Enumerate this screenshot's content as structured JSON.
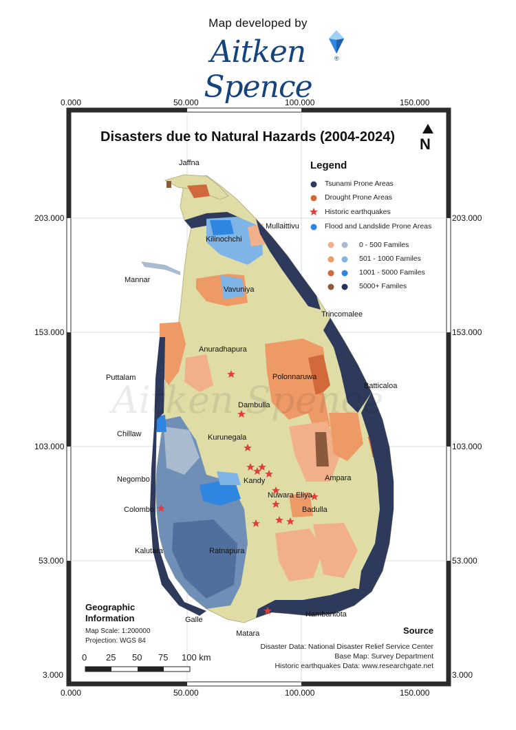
{
  "header": {
    "caption": "Map developed by",
    "logo_text": "Aitken Spence",
    "logo_reg": "®"
  },
  "map": {
    "title": "Disasters due to Natural Hazards (2004-2024)",
    "north_letter": "N",
    "x_ticks": [
      "0.000",
      "50.000",
      "100.000",
      "150.000"
    ],
    "y_ticks": [
      "203.000",
      "153.000",
      "103.000",
      "53.000",
      "3.000"
    ],
    "watermark": "Aitken Spence"
  },
  "legend": {
    "title": "Legend",
    "hazards": [
      {
        "label": "Tsunami Prone Areas",
        "color": "#2d3a5c",
        "symbol": "dot"
      },
      {
        "label": "Drought Prone Areas",
        "color": "#d2693a",
        "symbol": "dot"
      },
      {
        "label": "Historic earthquakes",
        "color": "#e23c3c",
        "symbol": "star"
      },
      {
        "label": "Flood and Landslide Prone Areas",
        "color": "#2f86e0",
        "symbol": "dot"
      }
    ],
    "classes": [
      {
        "label": "0 - 500  Familes",
        "drought_color": "#f2b08a",
        "flood_color": "#a9bccf"
      },
      {
        "label": "501 - 1000  Familes",
        "drought_color": "#ee9a66",
        "flood_color": "#7fb4e6"
      },
      {
        "label": "1001 - 5000  Familes",
        "drought_color": "#d2693a",
        "flood_color": "#2f86e0"
      },
      {
        "label": "5000+  Familes",
        "drought_color": "#8b5a3a",
        "flood_color": "#24345a"
      }
    ]
  },
  "places": [
    {
      "name": "Jaffna"
    },
    {
      "name": "Mullaittivu"
    },
    {
      "name": "Kilinochchi"
    },
    {
      "name": "Mannar"
    },
    {
      "name": "Vavuniya"
    },
    {
      "name": "Trincomalee"
    },
    {
      "name": "Anuradhapura"
    },
    {
      "name": "Puttalam"
    },
    {
      "name": "Polonnaruwa"
    },
    {
      "name": "Batticaloa"
    },
    {
      "name": "Dambulla"
    },
    {
      "name": "Chillaw"
    },
    {
      "name": "Kurunegala"
    },
    {
      "name": "Negombo"
    },
    {
      "name": "Kandy"
    },
    {
      "name": "Ampara"
    },
    {
      "name": "Nuwara Eliya"
    },
    {
      "name": "Colombo"
    },
    {
      "name": "Badulla"
    },
    {
      "name": "Kalutara"
    },
    {
      "name": "Ratnapura"
    },
    {
      "name": "Hambantota"
    },
    {
      "name": "Galle"
    },
    {
      "name": "Matara"
    }
  ],
  "geographic_info": {
    "title_line1": "Geographic",
    "title_line2": "Information",
    "scale": "Map Scale: 1:200000",
    "projection": "Projection:  WGS 84",
    "scale_bar_labels": [
      "0",
      "25",
      "50",
      "75",
      "100 km"
    ]
  },
  "source": {
    "title": "Source",
    "lines": [
      "Disaster Data: National Disaster Relief Service Center",
      "Base Map: Survey Department",
      "Historic earthquakes Data: www.researchgate.net"
    ]
  },
  "colors": {
    "land": "#dfdca6",
    "frame": "#2b2b2b",
    "sea": "#ffffff"
  }
}
